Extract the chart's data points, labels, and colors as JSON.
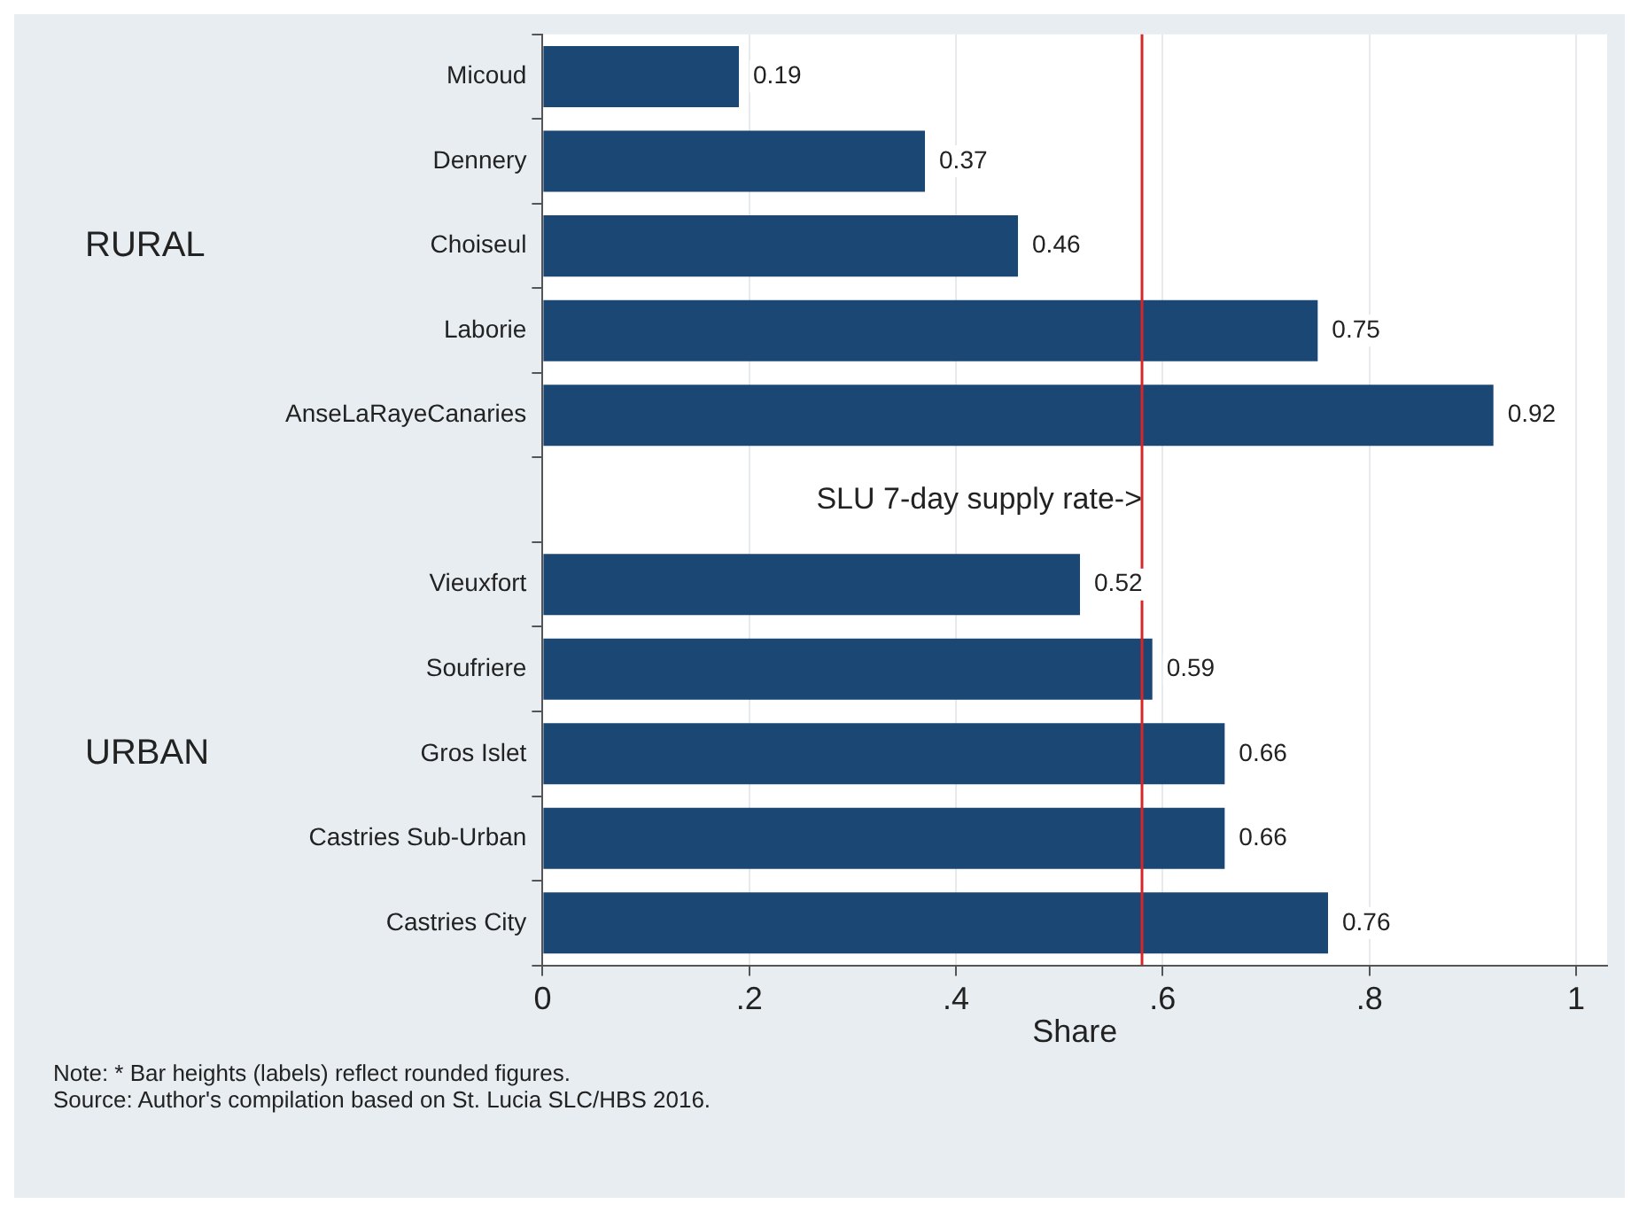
{
  "chart_data": {
    "type": "bar",
    "orientation": "horizontal",
    "categories": [
      "Micoud",
      "Dennery",
      "Choiseul",
      "Laborie",
      "AnseLaRayeCanaries",
      null,
      "Vieuxfort",
      "Soufriere",
      "Gros Islet",
      "Castries Sub-Urban",
      "Castries City"
    ],
    "values": [
      0.19,
      0.37,
      0.46,
      0.75,
      0.92,
      null,
      0.52,
      0.59,
      0.66,
      0.66,
      0.76
    ],
    "color": "#1b4775",
    "data_labels": true,
    "xlabel": "Share",
    "xlim": [
      0,
      1.03
    ],
    "xticks": [
      0,
      {
        "value": 0.2,
        "label": ".2"
      },
      {
        "value": 0.4,
        "label": ".4"
      },
      {
        "value": 0.6,
        "label": ".6"
      },
      {
        "value": 0.8,
        "label": ".8"
      },
      1
    ],
    "grid": "x",
    "legend": false,
    "ref_lines": [
      {
        "axis": "x",
        "value": 0.58,
        "label": "SLU 7-day supply rate->",
        "color": "#d62728"
      }
    ],
    "annotations": [
      "RURAL",
      "URBAN",
      "Note: * Bar heights (labels) reflect rounded figures.",
      "Source: Author's compilation based on St. Lucia SLC/HBS 2016."
    ]
  }
}
